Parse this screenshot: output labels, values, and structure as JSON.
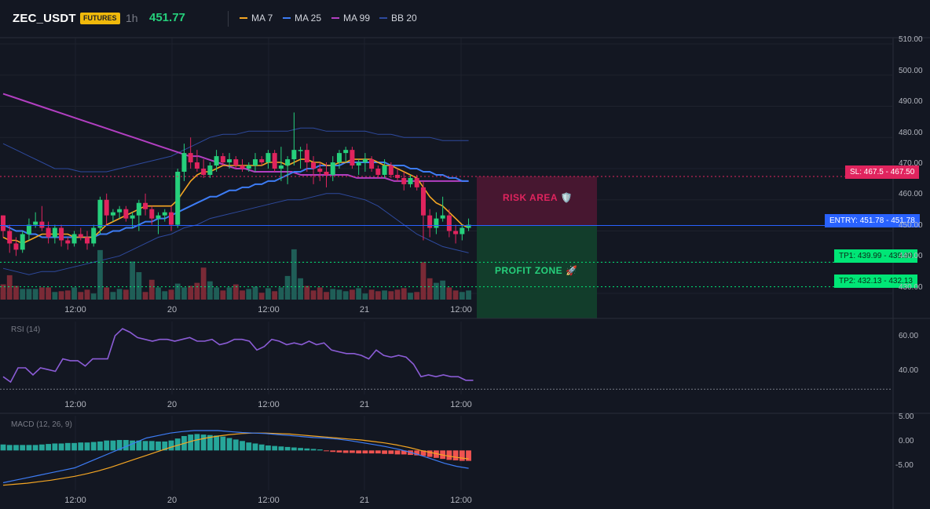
{
  "header": {
    "symbol": "ZEC_USDT",
    "badge": "FUTURES",
    "timeframe": "1h",
    "last_price": "451.77",
    "indicators": [
      {
        "label": "MA 7",
        "color": "#f5a623"
      },
      {
        "label": "MA 25",
        "color": "#3d7cf5"
      },
      {
        "label": "MA 99",
        "color": "#b23fc1"
      },
      {
        "label": "BB 20",
        "color": "#2e4a9e"
      }
    ]
  },
  "colors": {
    "up": "#26d07c",
    "down": "#e0245e",
    "vol_up": "#1f5e57",
    "vol_down": "#7a2a36",
    "rsi": "#8b5cd6",
    "macd_line": "#3d7cf5",
    "signal_line": "#f5a623",
    "hist_up": "#26a69a",
    "hist_down": "#ef5350"
  },
  "axes": {
    "price_ticks": [
      "510.00",
      "500.00",
      "490.00",
      "480.00",
      "470.00",
      "460.00",
      "450.00",
      "440.00",
      "430.00"
    ],
    "rsi_ticks": [
      "60.00",
      "40.00"
    ],
    "macd_ticks": [
      "5.00",
      "0.00",
      "-5.00"
    ],
    "time_labels": [
      "12:00",
      "20",
      "12:00",
      "21",
      "12:00"
    ]
  },
  "panels": {
    "rsi_title": "RSI (14)",
    "macd_title": "MACD (12, 26, 9)"
  },
  "levels": {
    "sl": {
      "price": 467.5,
      "label": "SL: 467.5 - 467.50"
    },
    "entry": {
      "price": 451.78,
      "label": "ENTRY: 451.78 - 451.78"
    },
    "tp1": {
      "price": 439.99,
      "label": "TP1: 439.99 - 439.99"
    },
    "tp2": {
      "price": 432.13,
      "label": "TP2: 432.13 - 432.13"
    }
  },
  "zones": {
    "risk_label": "RISK AREA 🛡️",
    "profit_label": "PROFIT ZONE 🚀"
  },
  "chart_data": {
    "type": "candlestick",
    "title": "ZEC_USDT 1h",
    "ylim": [
      428,
      512
    ],
    "rsi_lim": [
      27,
      68
    ],
    "macd_lim": [
      -8,
      7
    ],
    "candles": [
      [
        455,
        455,
        448,
        450
      ],
      [
        450,
        452,
        443,
        446
      ],
      [
        446,
        448,
        442,
        444
      ],
      [
        444,
        450,
        443,
        449
      ],
      [
        449,
        454,
        447,
        452
      ],
      [
        452,
        456,
        451,
        453
      ],
      [
        453,
        458,
        450,
        451
      ],
      [
        451,
        453,
        446,
        448
      ],
      [
        448,
        452,
        446,
        451
      ],
      [
        451,
        452,
        445,
        447
      ],
      [
        447,
        448,
        444,
        446
      ],
      [
        446,
        450,
        445,
        449
      ],
      [
        449,
        451,
        447,
        448
      ],
      [
        448,
        450,
        444,
        446
      ],
      [
        446,
        452,
        445,
        451
      ],
      [
        451,
        461,
        449,
        460
      ],
      [
        460,
        462,
        452,
        455
      ],
      [
        455,
        457,
        453,
        456
      ],
      [
        456,
        458,
        454,
        457
      ],
      [
        457,
        458,
        453,
        454
      ],
      [
        454,
        456,
        451,
        455
      ],
      [
        455,
        460,
        450,
        459
      ],
      [
        459,
        462,
        455,
        457
      ],
      [
        457,
        458,
        452,
        454
      ],
      [
        454,
        456,
        449,
        455
      ],
      [
        455,
        457,
        453,
        456
      ],
      [
        456,
        458,
        450,
        452
      ],
      [
        452,
        470,
        451,
        469
      ],
      [
        469,
        478,
        466,
        475
      ],
      [
        475,
        480,
        470,
        472
      ],
      [
        472,
        476,
        469,
        470
      ],
      [
        470,
        473,
        467,
        468
      ],
      [
        468,
        472,
        467,
        471
      ],
      [
        471,
        476,
        469,
        474
      ],
      [
        474,
        475,
        471,
        472
      ],
      [
        472,
        475,
        470,
        473
      ],
      [
        473,
        474,
        470,
        471
      ],
      [
        471,
        473,
        469,
        470
      ],
      [
        470,
        472,
        469,
        471
      ],
      [
        471,
        475,
        469,
        473
      ],
      [
        473,
        474,
        471,
        472
      ],
      [
        472,
        476,
        470,
        475
      ],
      [
        475,
        476,
        469,
        470
      ],
      [
        470,
        477,
        466,
        471
      ],
      [
        471,
        474,
        465,
        473
      ],
      [
        473,
        488,
        471,
        476
      ],
      [
        476,
        477,
        470,
        476
      ],
      [
        476,
        478,
        469,
        472
      ],
      [
        472,
        474,
        465,
        470
      ],
      [
        470,
        472,
        466,
        469
      ],
      [
        469,
        472,
        464,
        468
      ],
      [
        468,
        474,
        466,
        472
      ],
      [
        472,
        476,
        470,
        475
      ],
      [
        475,
        477,
        472,
        476
      ],
      [
        476,
        477,
        470,
        471
      ],
      [
        471,
        473,
        468,
        472
      ],
      [
        472,
        475,
        469,
        473
      ],
      [
        473,
        474,
        469,
        470
      ],
      [
        470,
        471,
        467,
        468
      ],
      [
        468,
        473,
        467,
        471
      ],
      [
        471,
        472,
        467,
        468
      ],
      [
        468,
        470,
        466,
        467
      ],
      [
        467,
        469,
        463,
        465
      ],
      [
        465,
        468,
        464,
        467
      ],
      [
        467,
        468,
        463,
        464
      ],
      [
        464,
        466,
        447,
        455
      ],
      [
        455,
        457,
        448,
        451
      ],
      [
        451,
        456,
        449,
        454
      ],
      [
        454,
        461,
        453,
        455
      ],
      [
        455,
        457,
        448,
        450
      ],
      [
        450,
        452,
        446,
        449
      ],
      [
        449,
        452,
        447,
        451
      ],
      [
        451,
        454,
        450,
        452
      ]
    ],
    "volume": [
      20,
      32,
      18,
      14,
      14,
      14,
      16,
      16,
      10,
      11,
      12,
      16,
      10,
      13,
      8,
      65,
      16,
      10,
      14,
      13,
      50,
      36,
      10,
      26,
      16,
      11,
      13,
      21,
      16,
      18,
      22,
      42,
      24,
      16,
      12,
      16,
      20,
      12,
      14,
      17,
      9,
      15,
      11,
      16,
      31,
      66,
      28,
      18,
      12,
      16,
      10,
      14,
      13,
      11,
      13,
      15,
      8,
      13,
      11,
      12,
      11,
      13,
      15,
      9,
      10,
      49,
      28,
      22,
      25,
      16,
      12,
      10,
      12
    ],
    "ma7": [
      448,
      447,
      447,
      446,
      447,
      448,
      449,
      449,
      449,
      449,
      449,
      448,
      448,
      448,
      448,
      450,
      452,
      453,
      454,
      455,
      456,
      457,
      458,
      458,
      458,
      458,
      458,
      460,
      463,
      466,
      468,
      469,
      469,
      470,
      471,
      471,
      471,
      471,
      471,
      471,
      471,
      472,
      472,
      472,
      471,
      472,
      473,
      473,
      472,
      472,
      471,
      471,
      472,
      472,
      473,
      473,
      473,
      473,
      472,
      471,
      471,
      470,
      469,
      468,
      467,
      464,
      461,
      459,
      458,
      456,
      454,
      452,
      451
    ],
    "ma25": [
      452,
      451,
      450,
      450,
      449,
      449,
      448,
      448,
      448,
      448,
      448,
      448,
      448,
      448,
      448,
      449,
      449,
      450,
      450,
      451,
      451,
      452,
      453,
      453,
      454,
      454,
      455,
      456,
      457,
      458,
      459,
      460,
      461,
      461,
      462,
      463,
      463,
      464,
      464,
      465,
      465,
      466,
      466,
      467,
      468,
      469,
      469,
      470,
      470,
      471,
      471,
      471,
      471,
      472,
      472,
      472,
      472,
      472,
      472,
      472,
      471,
      471,
      471,
      470,
      470,
      469,
      469,
      468,
      468,
      467,
      467,
      466,
      466
    ],
    "ma99": [
      494,
      493,
      492,
      491,
      490,
      489,
      488,
      487,
      486,
      485,
      484,
      483,
      482,
      481,
      480,
      479,
      478,
      477,
      476,
      475,
      474,
      474,
      473,
      472,
      471,
      470,
      470,
      469,
      469,
      469,
      469,
      469,
      468,
      468,
      468,
      468,
      468,
      468,
      467,
      467,
      467,
      467,
      466,
      466,
      466,
      466,
      466,
      466,
      466,
      466,
      466
    ],
    "bb_upper": [
      478,
      476,
      474,
      472,
      470,
      470,
      469,
      469,
      469,
      470,
      471,
      472,
      473,
      474,
      476,
      478,
      480,
      481,
      481,
      482,
      482,
      482,
      482,
      483,
      483,
      482,
      482,
      482,
      482,
      481,
      481,
      480,
      480,
      480,
      479,
      479,
      479
    ],
    "bb_lower": [
      438,
      437,
      436,
      437,
      437,
      438,
      439,
      440,
      441,
      442,
      444,
      446,
      448,
      449,
      451,
      452,
      454,
      455,
      456,
      457,
      458,
      459,
      460,
      460,
      461,
      462,
      462,
      461,
      460,
      458,
      455,
      452,
      449,
      447,
      445,
      444,
      443
    ],
    "rsi": [
      37,
      34,
      42,
      42,
      38,
      42,
      41,
      40,
      47,
      46,
      46,
      43,
      47,
      47,
      47,
      60,
      64,
      62,
      59,
      58,
      57,
      58,
      58,
      57,
      58,
      59,
      57,
      57,
      58,
      55,
      56,
      58,
      58,
      57,
      52,
      54,
      58,
      57,
      55,
      56,
      55,
      57,
      55,
      56,
      52,
      51,
      50,
      50,
      49,
      47,
      52,
      49,
      48,
      49,
      48,
      44,
      37,
      38,
      37,
      38,
      37,
      37,
      35,
      35
    ],
    "macd": [
      -6.5,
      -6,
      -5.5,
      -5,
      -4.5,
      -4,
      -3.5,
      -2.5,
      -1.5,
      -0.5,
      0.5,
      1.5,
      2.5,
      3,
      3.5,
      3.8,
      4,
      4,
      4,
      3.8,
      3.6,
      3.5,
      3.4,
      3.2,
      3,
      2.8,
      2.6,
      2.5,
      2.3,
      2,
      1.6,
      1.2,
      0.8,
      0.3,
      -0.3,
      -1,
      -1.8,
      -2.6,
      -3.2,
      -3.6
    ],
    "signal": [
      -7,
      -6.8,
      -6.6,
      -6.3,
      -6,
      -5.6,
      -5.2,
      -4.7,
      -4.1,
      -3.4,
      -2.6,
      -1.8,
      -1,
      -0.2,
      0.6,
      1.3,
      2,
      2.5,
      2.9,
      3.2,
      3.4,
      3.5,
      3.5,
      3.4,
      3.3,
      3.1,
      2.9,
      2.7,
      2.5,
      2.3,
      2.1,
      1.8,
      1.5,
      1.1,
      0.6,
      0,
      -0.5,
      -1,
      -1.4,
      -1.7
    ],
    "macd_hist": [
      1.2,
      1.1,
      1.1,
      1.1,
      1.1,
      1.1,
      1.2,
      1.3,
      1.4,
      1.4,
      1.5,
      1.5,
      1.6,
      1.6,
      1.7,
      1.8,
      2,
      2,
      2.1,
      2.1,
      2,
      2,
      1.9,
      1.9,
      1.8,
      1.8,
      2,
      2.4,
      2.9,
      3.2,
      3.3,
      3.2,
      3.1,
      3,
      2.8,
      2.5,
      2.2,
      1.9,
      1.6,
      1.4,
      1.2,
      1,
      0.9,
      0.8,
      0.7,
      0.6,
      0.5,
      0.4,
      0.3,
      0.2,
      -0.1,
      -0.3,
      -0.4,
      -0.5,
      -0.5,
      -0.6,
      -0.6,
      -0.6,
      -0.6,
      -0.7,
      -0.7,
      -0.8,
      -0.8,
      -0.9,
      -1,
      -1.1,
      -1.3,
      -1.5,
      -1.7,
      -1.9,
      -2,
      -2.1,
      -2.1
    ]
  }
}
